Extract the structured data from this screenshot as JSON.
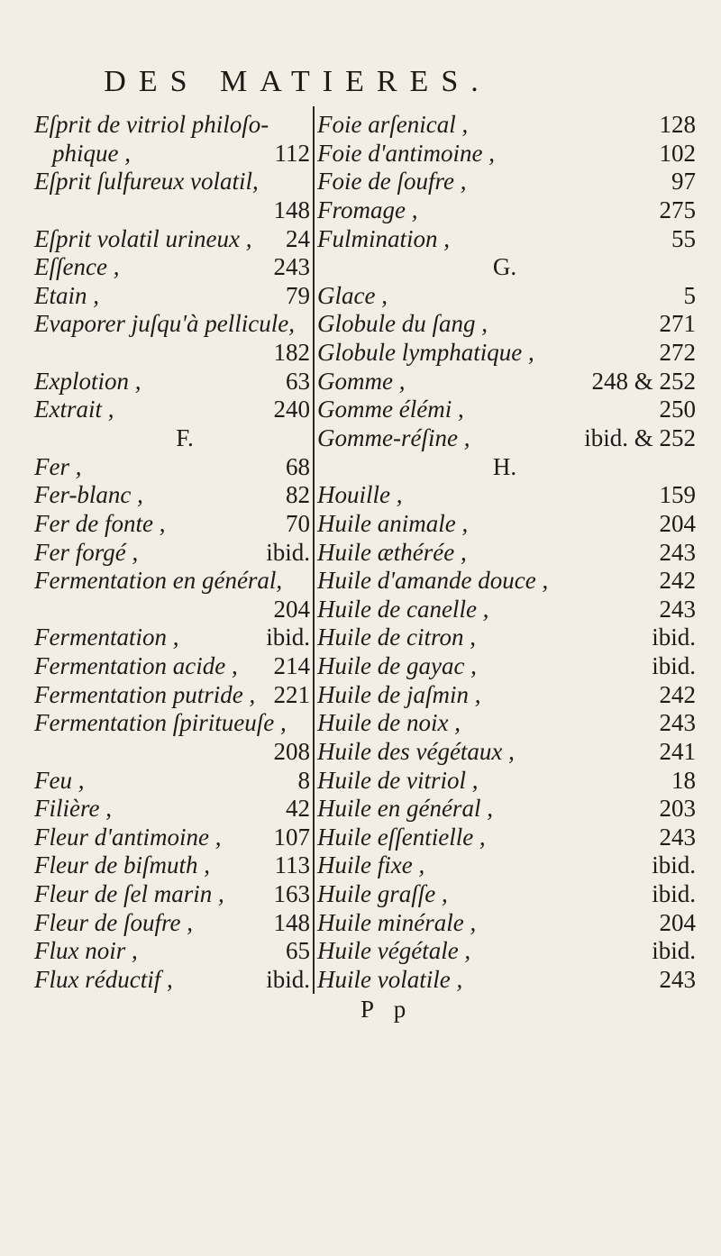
{
  "header": "DES MATIERES.",
  "left_column": [
    {
      "term": [
        "Eſprit de vitriol philoſo-",
        "phique ,"
      ],
      "page": "112"
    },
    {
      "term": [
        "Eſprit ſulfureux volatil,",
        ""
      ],
      "page": "148"
    },
    {
      "term": [
        "Eſprit volatil urineux ,"
      ],
      "page": "24"
    },
    {
      "term": [
        "Eſſence ,"
      ],
      "page": "243"
    },
    {
      "term": [
        "Etain ,"
      ],
      "page": "79"
    },
    {
      "term": [
        "Evaporer juſqu'à pellicule,",
        ""
      ],
      "page": "182"
    },
    {
      "term": [
        "Explotion ,"
      ],
      "page": "63"
    },
    {
      "term": [
        "Extrait ,"
      ],
      "page": "240"
    },
    {
      "section": "F."
    },
    {
      "term": [
        "Fer ,"
      ],
      "page": "68"
    },
    {
      "term": [
        "Fer-blanc ,"
      ],
      "page": "82"
    },
    {
      "term": [
        "Fer de fonte ,"
      ],
      "page": "70"
    },
    {
      "term": [
        "Fer forgé ,"
      ],
      "page": "ibid."
    },
    {
      "term": [
        "Fermentation en général,",
        ""
      ],
      "page": "204"
    },
    {
      "term": [
        "Fermentation ,"
      ],
      "page": "ibid."
    },
    {
      "term": [
        "Fermentation acide ,"
      ],
      "page": "214"
    },
    {
      "term": [
        "Fermentation putride ,"
      ],
      "page": "221"
    },
    {
      "term": [
        "Fermentation ſpiritueuſe ,",
        ""
      ],
      "page": "208"
    },
    {
      "term": [
        "Feu ,"
      ],
      "page": "8"
    },
    {
      "term": [
        "Filière ,"
      ],
      "page": "42"
    },
    {
      "term": [
        "Fleur d'antimoine ,"
      ],
      "page": "107"
    },
    {
      "term": [
        "Fleur de biſmuth ,"
      ],
      "page": "113"
    },
    {
      "term": [
        "Fleur de ſel marin ,"
      ],
      "page": "163"
    },
    {
      "term": [
        "Fleur de ſoufre ,"
      ],
      "page": "148"
    },
    {
      "term": [
        "Flux noir ,"
      ],
      "page": "65"
    },
    {
      "term": [
        "Flux réductif ,"
      ],
      "page": "ibid."
    }
  ],
  "right_column": [
    {
      "term": [
        "Foie arſenical ,"
      ],
      "page": "128"
    },
    {
      "term": [
        "Foie d'antimoine ,"
      ],
      "page": "102"
    },
    {
      "term": [
        "Foie de ſoufre ,"
      ],
      "page": "97"
    },
    {
      "term": [
        "Fromage ,"
      ],
      "page": "275"
    },
    {
      "term": [
        "Fulmination ,"
      ],
      "page": "55"
    },
    {
      "section": "G."
    },
    {
      "term": [
        "Glace ,"
      ],
      "page": "5"
    },
    {
      "term": [
        "Globule du ſang ,"
      ],
      "page": "271"
    },
    {
      "term": [
        "Globule lymphatique ,"
      ],
      "page": "272"
    },
    {
      "term": [
        "Gomme ,"
      ],
      "page": "248 & 252"
    },
    {
      "term": [
        "Gomme élémi ,"
      ],
      "page": "250"
    },
    {
      "term": [
        "Gomme-réſine ,"
      ],
      "page": "ibid. & 252"
    },
    {
      "section": "H."
    },
    {
      "term": [
        "Houille ,"
      ],
      "page": "159"
    },
    {
      "term": [
        "Huile animale ,"
      ],
      "page": "204"
    },
    {
      "term": [
        "Huile æthérée ,"
      ],
      "page": "243"
    },
    {
      "term": [
        "Huile d'amande douce ,"
      ],
      "page": "242"
    },
    {
      "term": [
        "Huile de canelle ,"
      ],
      "page": "243"
    },
    {
      "term": [
        "Huile de citron ,"
      ],
      "page": "ibid."
    },
    {
      "term": [
        "Huile de gayac ,"
      ],
      "page": "ibid."
    },
    {
      "term": [
        "Huile de jaſmin ,"
      ],
      "page": "242"
    },
    {
      "term": [
        "Huile de noix ,"
      ],
      "page": "243"
    },
    {
      "term": [
        "Huile des végétaux ,"
      ],
      "page": "241"
    },
    {
      "term": [
        "Huile de vitriol ,"
      ],
      "page": "18"
    },
    {
      "term": [
        "Huile en général ,"
      ],
      "page": "203"
    },
    {
      "term": [
        "Huile eſſentielle ,"
      ],
      "page": "243"
    },
    {
      "term": [
        "Huile fixe ,"
      ],
      "page": "ibid."
    },
    {
      "term": [
        "Huile graſſe ,"
      ],
      "page": "ibid."
    },
    {
      "term": [
        "Huile minérale ,"
      ],
      "page": "204"
    },
    {
      "term": [
        "Huile végétale ,"
      ],
      "page": "ibid."
    },
    {
      "term": [
        "Huile volatile ,"
      ],
      "page": "243"
    }
  ],
  "footer": "P p"
}
